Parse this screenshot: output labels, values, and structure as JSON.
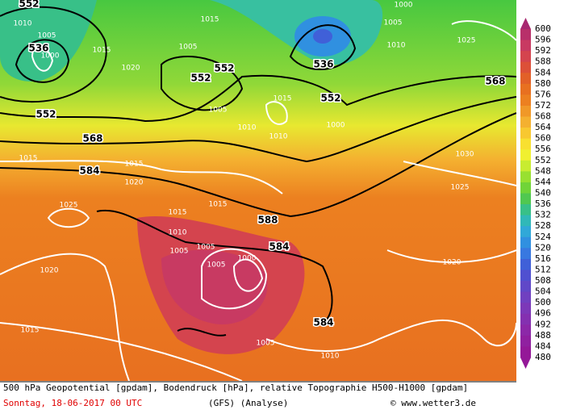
{
  "map": {
    "height_labels": [
      552,
      536,
      552,
      552,
      552,
      536,
      552,
      568,
      568,
      584,
      588,
      584,
      584
    ],
    "pressure_labels": [
      1010,
      1005,
      1000,
      1015,
      1020,
      1005,
      1015,
      1005,
      1000,
      1010,
      1025,
      1015,
      1005,
      1010,
      1010,
      1000,
      1030,
      1025,
      1015,
      1015,
      1020,
      1025,
      1015,
      1015,
      1010,
      1005,
      1005,
      1005,
      1000,
      1020,
      1020,
      1015,
      1005,
      1010
    ]
  },
  "colorbar": {
    "labels": [
      600,
      596,
      592,
      588,
      584,
      580,
      576,
      572,
      568,
      564,
      560,
      556,
      552,
      548,
      544,
      540,
      536,
      532,
      528,
      524,
      520,
      516,
      512,
      508,
      504,
      500,
      496,
      492,
      488,
      484,
      480
    ],
    "colors": [
      "#b8306a",
      "#c83a62",
      "#d4444e",
      "#dc5038",
      "#e26028",
      "#e87020",
      "#ec8020",
      "#f09828",
      "#f4b030",
      "#f8c830",
      "#f8e030",
      "#f0f030",
      "#c8ec30",
      "#98e030",
      "#70d438",
      "#50c850",
      "#38c088",
      "#30b8b8",
      "#30a8d8",
      "#3090e0",
      "#3878e0",
      "#4060d8",
      "#5050d0",
      "#6048c8",
      "#7040c0",
      "#7c38b8",
      "#8430b0",
      "#8c28a8",
      "#9020a0",
      "#941898"
    ]
  },
  "footer": {
    "line1": "500 hPa Geopotential [gpdam], Bodendruck [hPa], relative Topographie H500-H1000 [gpdam]",
    "date": "Sonntag, 18-06-2017  00 UTC",
    "model": "(GFS)  (Analyse)",
    "source": "© www.wetter3.de"
  }
}
